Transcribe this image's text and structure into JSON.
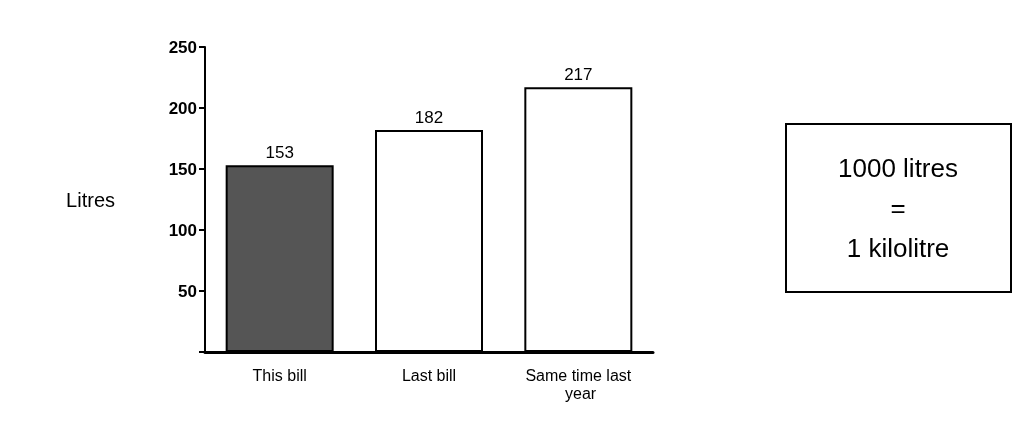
{
  "chart_data": {
    "type": "bar",
    "ylabel": "Litres",
    "categories": [
      "This bill",
      "Last bill",
      "Same time last year"
    ],
    "values": [
      153,
      182,
      217
    ],
    "colors": [
      "#555555",
      "#ffffff",
      "#ffffff"
    ],
    "ylim": [
      0,
      250
    ],
    "yticks": [
      {
        "value": 0,
        "label": null
      },
      50,
      100,
      150,
      200,
      250
    ],
    "grid": false,
    "data_labels": true,
    "annotations": [
      "1000 litres\n=\n1 kilolitre"
    ]
  }
}
